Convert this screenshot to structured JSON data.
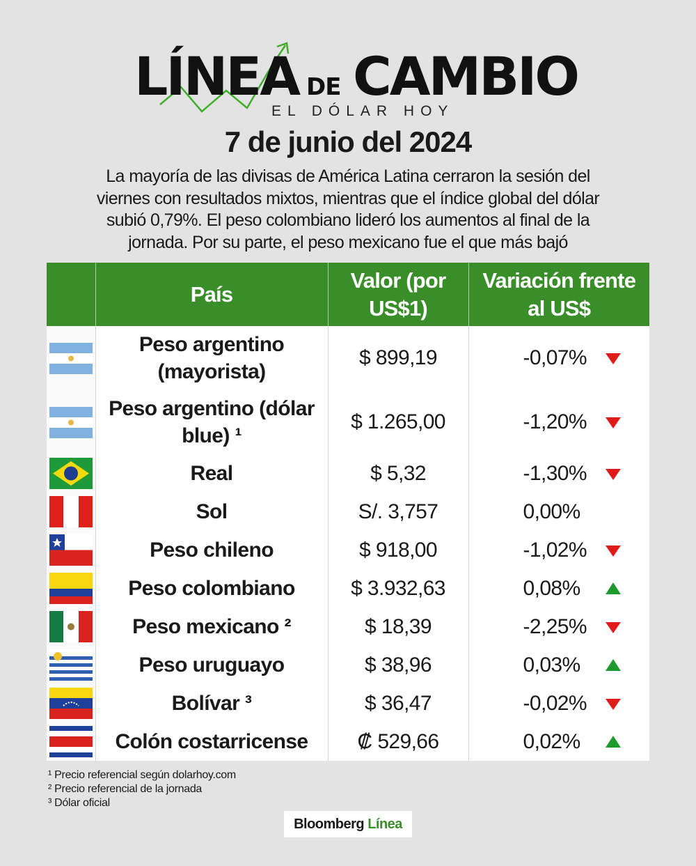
{
  "header": {
    "title_left": "LÍNEA",
    "title_mid": "DE",
    "title_right": "CAMBIO",
    "subtitle": "EL DÓLAR HOY",
    "date": "7 de junio del 2024"
  },
  "intro": "La mayoría de las divisas de América Latina cerraron la sesión del viernes con resultados mixtos, mientras que el índice global del dólar subió 0,79%. El peso colombiano lideró los aumentos al final de la jornada. Por su parte, el peso mexicano fue el que más bajó",
  "table": {
    "columns": [
      "País",
      "Valor (por US$1)",
      "Variación frente al US$"
    ],
    "rows": [
      [
        "Peso argentino (mayorista)",
        "$ 899,19",
        "-0,07%"
      ],
      [
        "Peso argentino (dólar blue) ¹",
        "$ 1.265,00",
        "-1,20%"
      ],
      [
        "Real",
        "$ 5,32",
        "-1,30%"
      ],
      [
        "Sol",
        "S/. 3,757",
        "0,00%"
      ],
      [
        "Peso chileno",
        "$ 918,00",
        "-1,02%"
      ],
      [
        "Peso colombiano",
        "$ 3.932,63",
        "0,08%"
      ],
      [
        "Peso mexicano ²",
        "$ 18,39",
        "-2,25%"
      ],
      [
        "Peso uruguayo",
        "$ 38,96",
        "0,03%"
      ],
      [
        "Bolívar ³",
        "$ 36,47",
        "-0,02%"
      ],
      [
        "Colón costarricense",
        "₡ 529,66",
        "0,02%"
      ]
    ]
  },
  "footnotes": [
    "¹ Precio referencial según dolarhoy.com",
    "² Precio referencial de la jornada",
    "³ Dólar oficial"
  ],
  "footer": {
    "brand": "Bloomberg",
    "brand_accent": "Línea"
  }
}
